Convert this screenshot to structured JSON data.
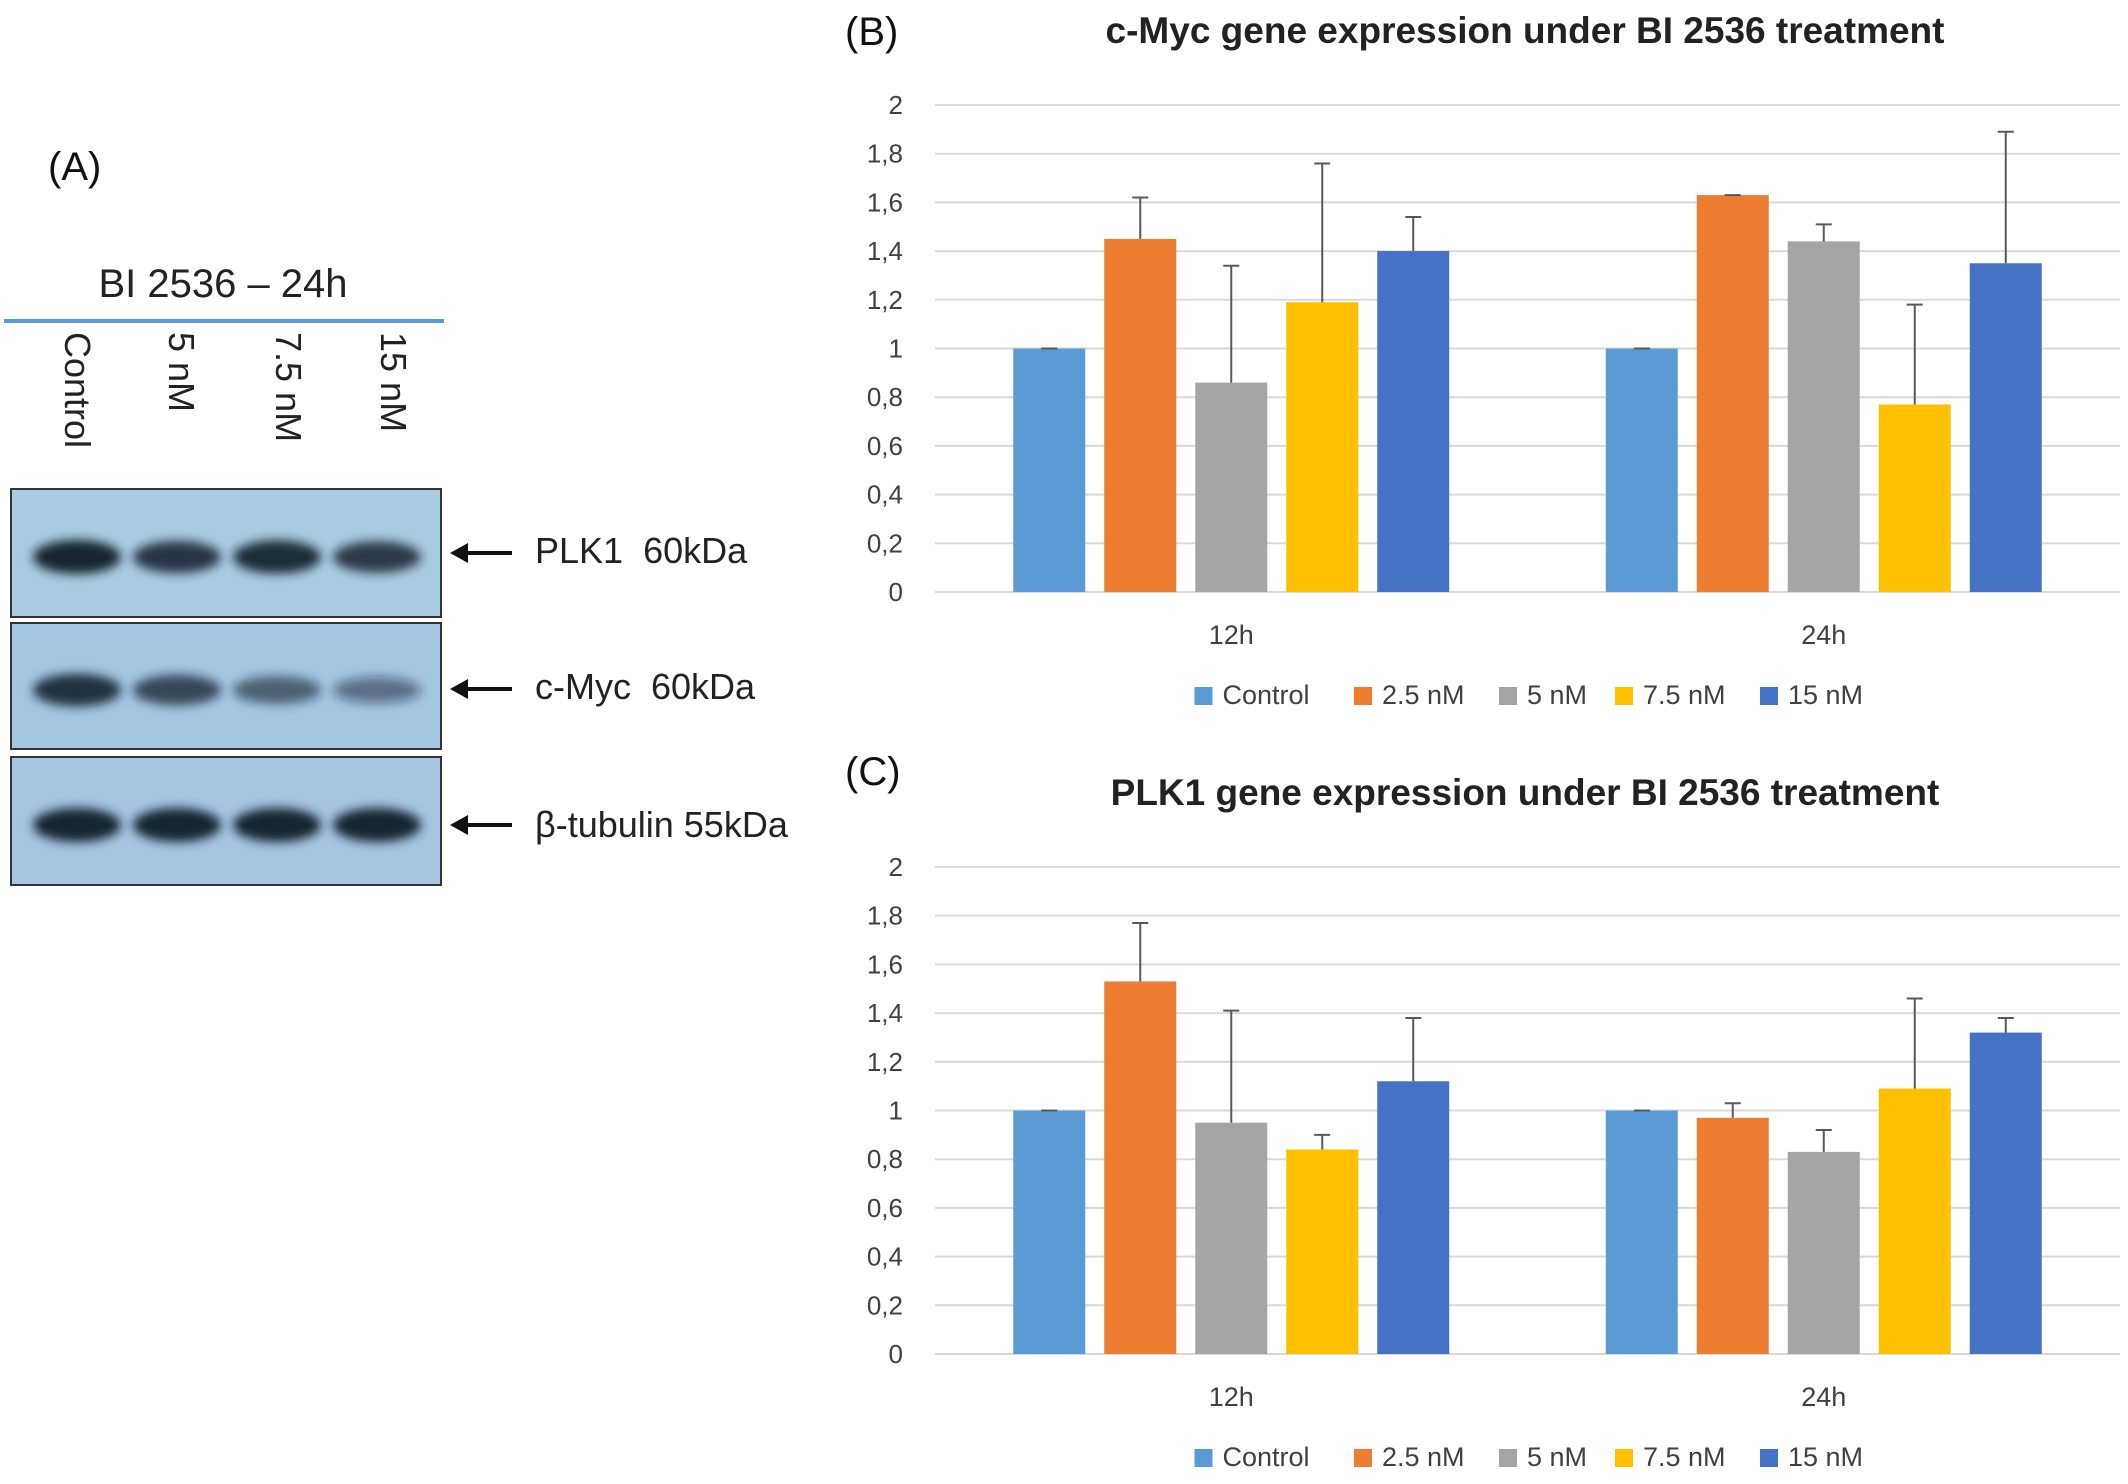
{
  "panels": {
    "a_letter": "(A)",
    "b_letter": "(B)",
    "c_letter": "(C)"
  },
  "blot": {
    "title": "BI 2536 – 24h",
    "lanes": [
      "Control",
      "5 nM",
      "7.5 nM",
      "15 nM"
    ],
    "bands": [
      {
        "label": "PLK1  60kDa",
        "intensity": [
          1.0,
          0.85,
          0.95,
          0.8
        ]
      },
      {
        "label": "c-Myc  60kDa",
        "intensity": [
          0.9,
          0.7,
          0.5,
          0.35
        ]
      },
      {
        "label": "β-tubulin 55kDa",
        "intensity": [
          1.0,
          1.0,
          1.0,
          1.0
        ]
      }
    ]
  },
  "colors": {
    "Control": "#5b9bd5",
    "2.5 nM": "#ed7d31",
    "5 nM": "#a5a5a5",
    "7.5 nM": "#ffc000",
    "15 nM": "#4472c4",
    "grid": "#d9d9d9",
    "errorbar": "#595959"
  },
  "chart_data": [
    {
      "type": "bar",
      "title": "c-Myc gene expression under BI 2536 treatment",
      "categories": [
        "12h",
        "24h"
      ],
      "series": [
        {
          "name": "Control",
          "values": [
            1.0,
            1.0
          ],
          "errors": [
            0.0,
            0.0
          ]
        },
        {
          "name": "2.5 nM",
          "values": [
            1.45,
            1.63
          ],
          "errors": [
            0.17,
            0.0
          ]
        },
        {
          "name": "5 nM",
          "values": [
            0.86,
            1.44
          ],
          "errors": [
            0.48,
            0.07
          ]
        },
        {
          "name": "7.5 nM",
          "values": [
            1.19,
            0.77
          ],
          "errors": [
            0.57,
            0.41
          ]
        },
        {
          "name": "15 nM",
          "values": [
            1.4,
            1.35
          ],
          "errors": [
            0.14,
            0.54
          ]
        }
      ],
      "yticks": [
        "0",
        "0,2",
        "0,4",
        "0,6",
        "0,8",
        "1",
        "1,2",
        "1,4",
        "1,6",
        "1,8",
        "2"
      ],
      "ylim": [
        0,
        2
      ],
      "grid": true,
      "legend": "bottom"
    },
    {
      "type": "bar",
      "title": "PLK1 gene expression under BI 2536 treatment",
      "categories": [
        "12h",
        "24h"
      ],
      "series": [
        {
          "name": "Control",
          "values": [
            1.0,
            1.0
          ],
          "errors": [
            0.0,
            0.0
          ]
        },
        {
          "name": "2.5 nM",
          "values": [
            1.53,
            0.97
          ],
          "errors": [
            0.24,
            0.06
          ]
        },
        {
          "name": "5 nM",
          "values": [
            0.95,
            0.83
          ],
          "errors": [
            0.46,
            0.09
          ]
        },
        {
          "name": "7.5 nM",
          "values": [
            0.84,
            1.09
          ],
          "errors": [
            0.06,
            0.37
          ]
        },
        {
          "name": "15 nM",
          "values": [
            1.12,
            1.32
          ],
          "errors": [
            0.26,
            0.06
          ]
        }
      ],
      "yticks": [
        "0",
        "0,2",
        "0,4",
        "0,6",
        "0,8",
        "1",
        "1,2",
        "1,4",
        "1,6",
        "1,8",
        "2"
      ],
      "ylim": [
        0,
        2
      ],
      "grid": true,
      "legend": "bottom"
    }
  ]
}
